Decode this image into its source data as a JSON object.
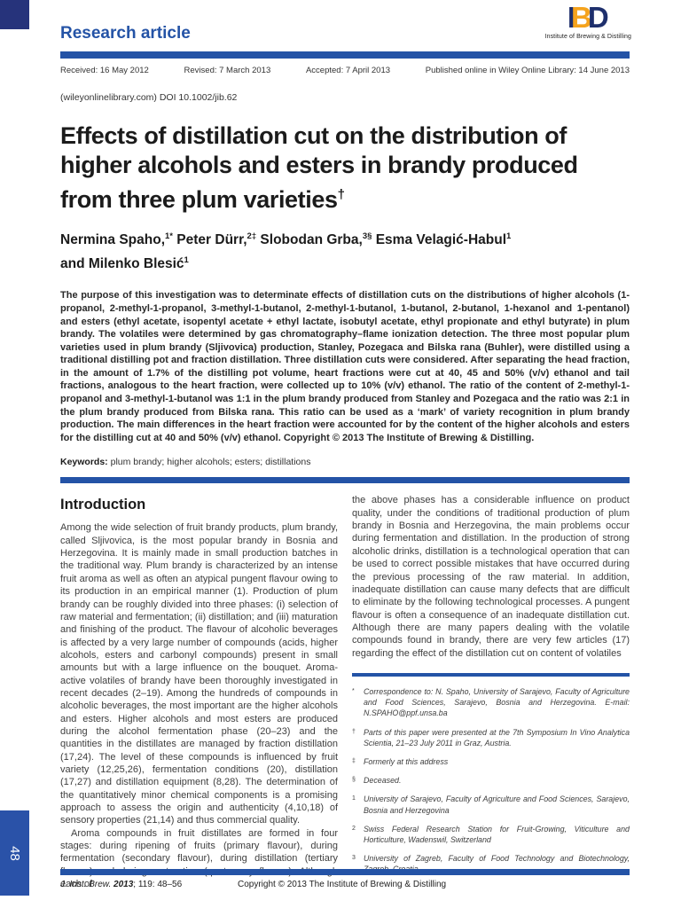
{
  "colors": {
    "accent_blue": "#2453a6",
    "logo_navy": "#1e2f6c",
    "logo_orange": "#f5a31d",
    "corner_navy": "#26337b"
  },
  "header": {
    "article_type": "Research article",
    "logo": {
      "letter_i": "I",
      "letter_b": "B",
      "letter_d": "D",
      "caption": "Institute of Brewing & Distilling"
    },
    "dates": [
      "Received: 16 May 2012",
      "Revised: 7 March 2013",
      "Accepted: 7 April 2013",
      "Published online in Wiley Online Library: 14 June 2013"
    ],
    "doi_line": "(wileyonlinelibrary.com) DOI 10.1002/jib.62"
  },
  "title": {
    "line1": "Effects of distillation cut on the distribution of",
    "line2": "higher alcohols and esters in brandy produced",
    "line3": "from three plum varieties",
    "sup": "†"
  },
  "authors": {
    "line1": [
      {
        "t": "Nermina Spaho,",
        "s": "1*"
      },
      {
        "t": " Peter Dürr,",
        "s": "2‡"
      },
      {
        "t": " Slobodan Grba,",
        "s": "3§"
      },
      {
        "t": " Esma Velagić-Habul",
        "s": "1"
      }
    ],
    "line2": [
      {
        "t": "and Milenko Blesić",
        "s": "1"
      }
    ]
  },
  "abstract": {
    "text": "The purpose of this investigation was to determinate effects of distillation cuts on the distributions of higher alcohols (1-propanol, 2-methyl-1-propanol, 3-methyl-1-butanol, 2-methyl-1-butanol, 1-butanol, 2-butanol, 1-hexanol and 1-pentanol) and esters (ethyl acetate, isopentyl acetate + ethyl lactate, isobutyl acetate, ethyl propionate and ethyl butyrate) in plum brandy. The volatiles were determined by gas chromatography–flame ionization detection. The three most popular plum varieties used in plum brandy (Sljivovica) production, Stanley, Pozegaca and Bilska rana (Buhler), were distilled using a traditional distilling pot and fraction distillation. Three distillation cuts were considered. After separating the head fraction, in the amount of 1.7% of the distilling pot volume, heart fractions were cut at 40, 45 and 50% (v/v) ethanol and tail fractions, analogous to the heart fraction, were collected up to 10% (v/v) ethanol. The ratio of the content of 2-methyl-1-propanol and 3-methyl-1-butanol was 1:1 in the plum brandy produced from Stanley and Pozegaca and the ratio was 2:1 in the plum brandy produced from Bilska rana. This ratio can be used as a ‘mark’ of variety recognition in plum brandy production. The main differences in the heart fraction were accounted for by the content of the higher alcohols and esters for the distilling cut at 40 and 50% (v/v) ethanol. Copyright © 2013 The Institute of Brewing & Distilling.",
    "keywords_label": "Keywords:",
    "keywords": " plum brandy; higher alcohols; esters; distillations"
  },
  "introduction": {
    "heading": "Introduction",
    "left_par1": "Among the wide selection of fruit brandy products, plum brandy, called Sljivovica, is the most popular brandy in Bosnia and Herzegovina. It is mainly made in small production batches in the traditional way. Plum brandy is characterized by an intense fruit aroma as well as often an atypical pungent flavour owing to its production in an empirical manner (1). Production of plum brandy can be roughly divided into three phases: (i) selection of raw material and fermentation; (ii) distillation; and (iii) maturation and finishing of the product. The flavour of alcoholic beverages is affected by a very large number of compounds (acids, higher alcohols, esters and carbonyl compounds) present in small amounts but with a large influence on the bouquet. Aroma-active volatiles of brandy have been thoroughly investigated in recent decades (2–19). Among the hundreds of compounds in alcoholic beverages, the most important are the higher alcohols and esters. Higher alcohols and most esters are produced during the alcohol fermentation phase (20–23) and the quantities in the distillates are managed by fraction distillation (17,24). The level of these compounds is influenced by fruit variety (12,25,26), fermentation conditions (20), distillation (17,27) and distillation equipment (8,28). The determination of the quantitatively minor chemical components is a promising approach to assess the origin and authenticity (4,10,18) of sensory properties (21,14) and thus commercial quality.",
    "left_par2": "Aroma compounds in fruit distillates are formed in four stages: during ripening of fruits (primary flavour), during fermentation (secondary flavour), during distillation (tertiary flavour) and during maturation (quaternary flavour). Although each of",
    "right_par": "the above phases has a considerable influence on product quality, under the conditions of traditional production of plum brandy in Bosnia and Herzegovina, the main problems occur during fermentation and distillation. In the production of strong alcoholic drinks, distillation is a technological operation that can be used to correct possible mistakes that have occurred during the previous processing of the raw material. In addition, inadequate distillation can cause many defects that are difficult to eliminate by the following technological processes. A pungent flavour is often a consequence of an inadequate distillation cut. Although there are many papers dealing with the volatile compounds found in brandy, there are very few articles (17) regarding the effect of the distillation cut on content of volatiles"
  },
  "footnotes": [
    {
      "marker": "*",
      "text": "Correspondence to: N. Spaho, University of Sarajevo, Faculty of Agriculture and Food Sciences, Sarajevo, Bosnia and Herzegovina. E-mail: N.SPAHO@ppf.unsa.ba"
    },
    {
      "marker": "†",
      "text": "Parts of this paper were presented at the 7th Symposium In Vino Analytica Scientia, 21–23 July 2011 in Graz, Austria."
    },
    {
      "marker": "‡",
      "text": "Formerly at this address"
    },
    {
      "marker": "§",
      "text": "Deceased."
    },
    {
      "marker": "1",
      "text": "University of Sarajevo, Faculty of Agriculture and Food Sciences, Sarajevo, Bosnia and Herzegovina"
    },
    {
      "marker": "2",
      "text": "Swiss Federal Research Station for Fruit-Growing, Viticulture and Horticulture, Wadenswil, Switzerland"
    },
    {
      "marker": "3",
      "text": "University of Zagreb, Faculty of Food Technology and Biotechnology, Zagreb, Croatia"
    }
  ],
  "footer": {
    "citation_journal": "J. Inst. Brew. ",
    "citation_year": "2013",
    "citation_rest": "; 119: 48–56",
    "copyright": "Copyright © 2013 The Institute of Brewing & Distilling"
  },
  "sidebar": {
    "page_number": "48"
  }
}
